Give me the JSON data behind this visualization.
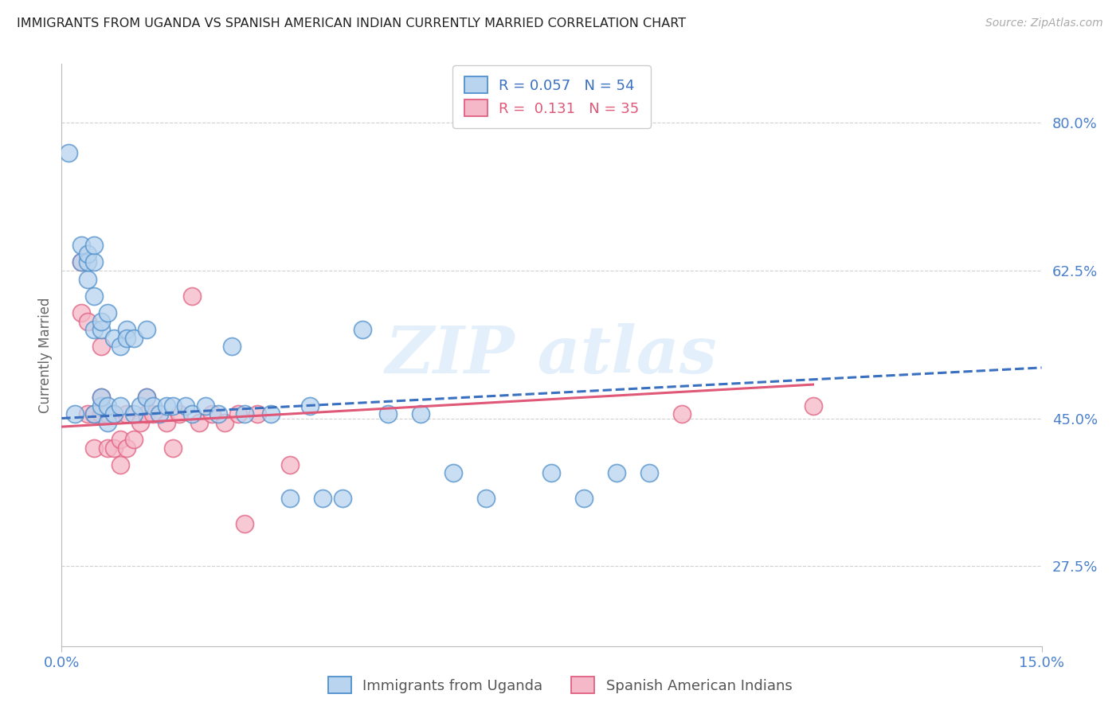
{
  "title": "IMMIGRANTS FROM UGANDA VS SPANISH AMERICAN INDIAN CURRENTLY MARRIED CORRELATION CHART",
  "source": "Source: ZipAtlas.com",
  "ylabel": "Currently Married",
  "yticks": [
    0.275,
    0.45,
    0.625,
    0.8
  ],
  "ytick_labels": [
    "27.5%",
    "45.0%",
    "62.5%",
    "80.0%"
  ],
  "xmin": 0.0,
  "xmax": 0.15,
  "ymin": 0.18,
  "ymax": 0.87,
  "legend_r1": "R = 0.057",
  "legend_n1": "N = 54",
  "legend_r2": "R =  0.131",
  "legend_n2": "N = 35",
  "label1": "Immigrants from Uganda",
  "label2": "Spanish American Indians",
  "color_blue_fill": "#b8d4ee",
  "color_pink_fill": "#f5b8c8",
  "color_blue_edge": "#5090cc",
  "color_pink_edge": "#e06080",
  "color_blue_line": "#3a70c0",
  "color_pink_line": "#e05878",
  "color_axis": "#4a80cc",
  "watermark_color": "#cce4f8",
  "blue_x": [
    0.002,
    0.003,
    0.003,
    0.004,
    0.004,
    0.004,
    0.005,
    0.005,
    0.005,
    0.005,
    0.005,
    0.006,
    0.006,
    0.006,
    0.006,
    0.007,
    0.007,
    0.007,
    0.008,
    0.008,
    0.009,
    0.009,
    0.01,
    0.01,
    0.011,
    0.011,
    0.012,
    0.013,
    0.013,
    0.014,
    0.015,
    0.016,
    0.017,
    0.019,
    0.02,
    0.022,
    0.024,
    0.026,
    0.028,
    0.032,
    0.035,
    0.038,
    0.04,
    0.043,
    0.046,
    0.05,
    0.055,
    0.06,
    0.065,
    0.075,
    0.08,
    0.085,
    0.09,
    0.001
  ],
  "blue_y": [
    0.455,
    0.635,
    0.655,
    0.615,
    0.635,
    0.645,
    0.455,
    0.555,
    0.595,
    0.635,
    0.655,
    0.465,
    0.475,
    0.555,
    0.565,
    0.445,
    0.465,
    0.575,
    0.455,
    0.545,
    0.465,
    0.535,
    0.555,
    0.545,
    0.455,
    0.545,
    0.465,
    0.475,
    0.555,
    0.465,
    0.455,
    0.465,
    0.465,
    0.465,
    0.455,
    0.465,
    0.455,
    0.535,
    0.455,
    0.455,
    0.355,
    0.465,
    0.355,
    0.355,
    0.555,
    0.455,
    0.455,
    0.385,
    0.355,
    0.385,
    0.355,
    0.385,
    0.385,
    0.765
  ],
  "pink_x": [
    0.003,
    0.003,
    0.004,
    0.004,
    0.005,
    0.005,
    0.006,
    0.006,
    0.006,
    0.007,
    0.007,
    0.008,
    0.008,
    0.009,
    0.009,
    0.01,
    0.01,
    0.011,
    0.012,
    0.013,
    0.013,
    0.014,
    0.016,
    0.017,
    0.018,
    0.02,
    0.021,
    0.023,
    0.025,
    0.027,
    0.028,
    0.03,
    0.035,
    0.095,
    0.115
  ],
  "pink_y": [
    0.575,
    0.635,
    0.455,
    0.565,
    0.415,
    0.455,
    0.455,
    0.475,
    0.535,
    0.415,
    0.455,
    0.415,
    0.455,
    0.395,
    0.425,
    0.415,
    0.455,
    0.425,
    0.445,
    0.455,
    0.475,
    0.455,
    0.445,
    0.415,
    0.455,
    0.595,
    0.445,
    0.455,
    0.445,
    0.455,
    0.325,
    0.455,
    0.395,
    0.455,
    0.465
  ],
  "blue_trend_x0": 0.0,
  "blue_trend_x1": 0.15,
  "blue_trend_y0": 0.45,
  "blue_trend_y1": 0.51,
  "pink_trend_x0": 0.0,
  "pink_trend_x1": 0.115,
  "pink_trend_y0": 0.44,
  "pink_trend_y1": 0.49
}
